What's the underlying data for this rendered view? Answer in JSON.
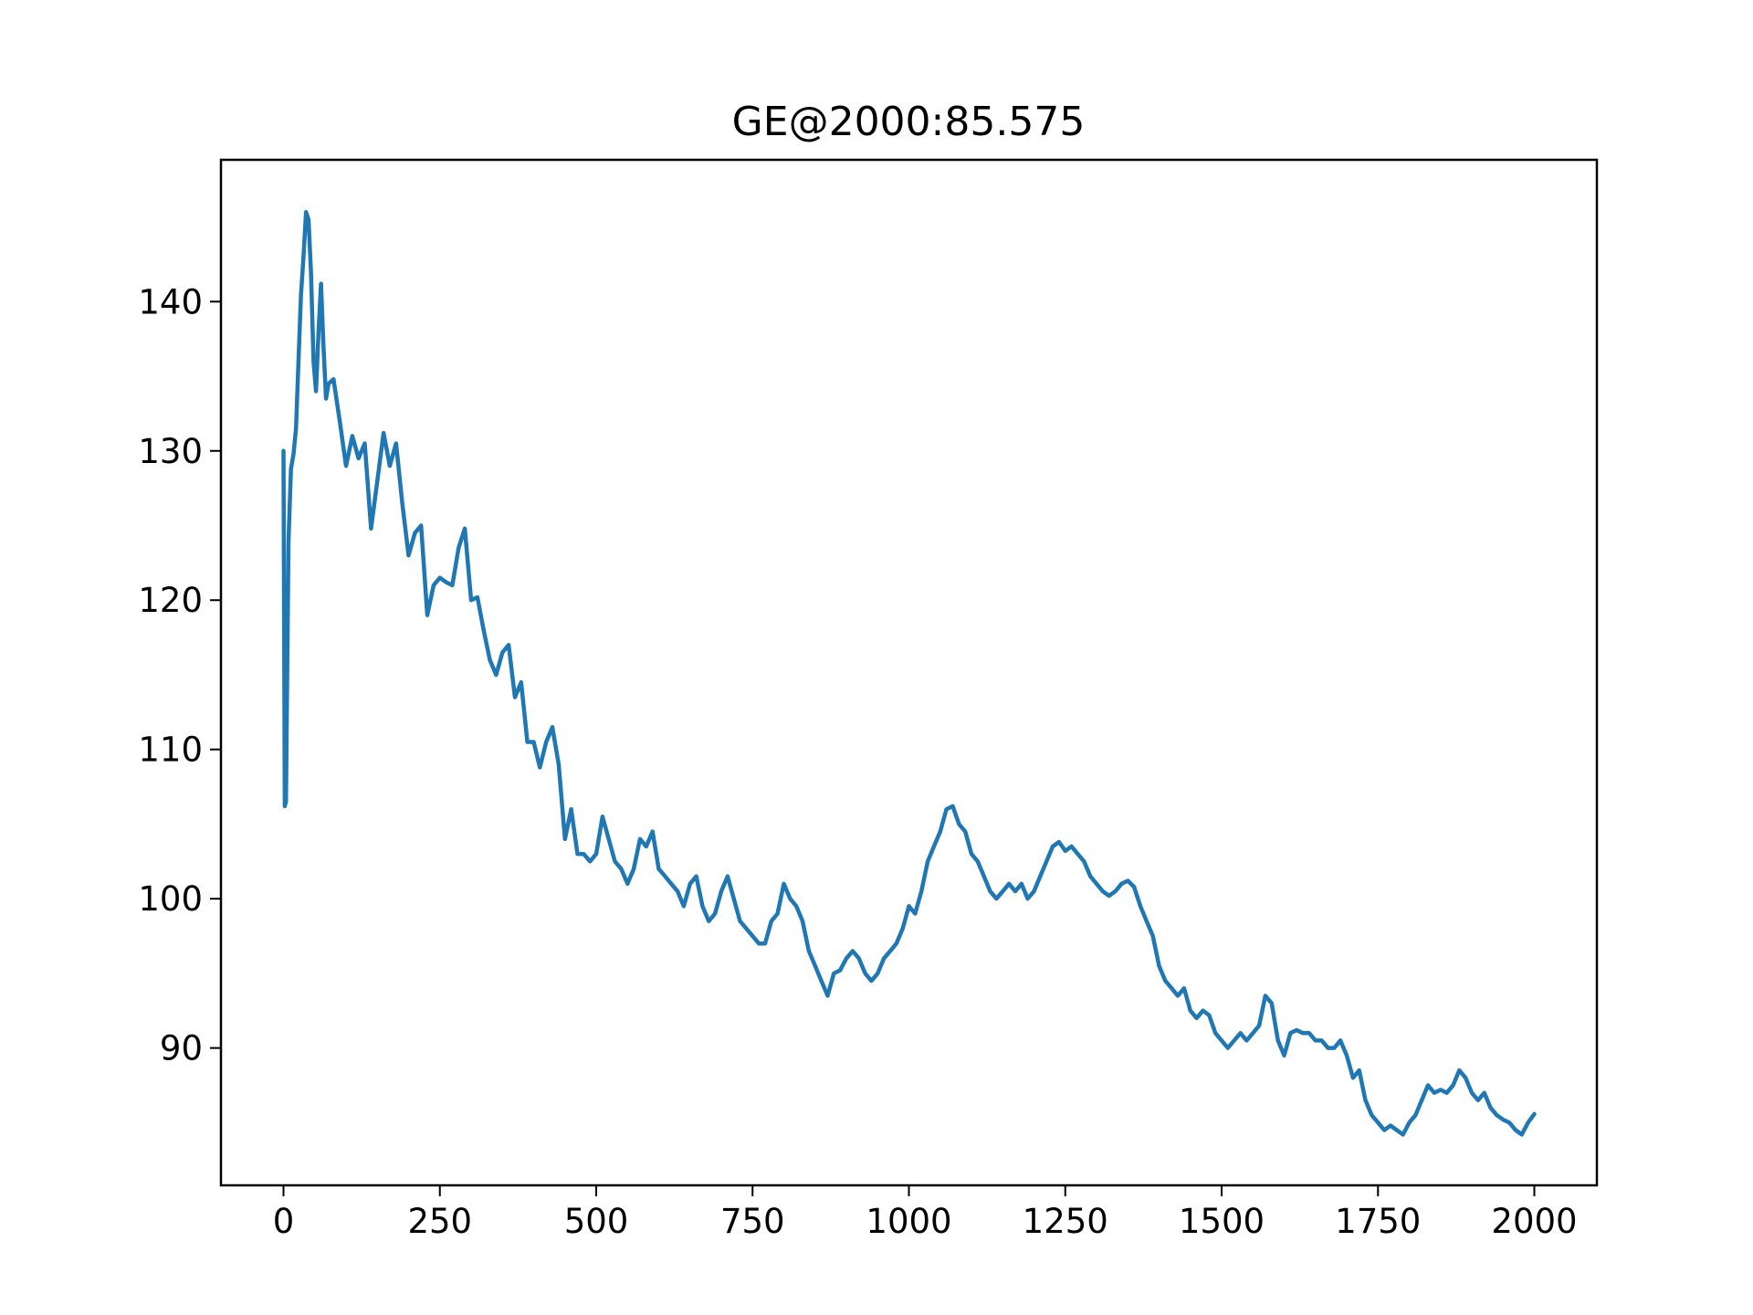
{
  "chart_data": {
    "type": "line",
    "title": "GE@2000:85.575",
    "xlabel": "",
    "ylabel": "",
    "xlim": [
      -100,
      2100
    ],
    "ylim": [
      80.8,
      149.5
    ],
    "x_ticks": [
      0,
      250,
      500,
      750,
      1000,
      1250,
      1500,
      1750,
      2000
    ],
    "y_ticks": [
      90,
      100,
      110,
      120,
      130,
      140
    ],
    "grid": false,
    "legend": "none",
    "line_color": "#1f77b4",
    "series": [
      {
        "points": [
          [
            0,
            130.0
          ],
          [
            2,
            106.2
          ],
          [
            4,
            106.5
          ],
          [
            8,
            124.0
          ],
          [
            12,
            128.8
          ],
          [
            16,
            129.8
          ],
          [
            20,
            131.5
          ],
          [
            24,
            136.0
          ],
          [
            28,
            140.5
          ],
          [
            32,
            143.0
          ],
          [
            36,
            146.0
          ],
          [
            40,
            145.5
          ],
          [
            44,
            142.0
          ],
          [
            48,
            136.0
          ],
          [
            52,
            134.0
          ],
          [
            56,
            138.0
          ],
          [
            60,
            141.2
          ],
          [
            64,
            137.0
          ],
          [
            68,
            133.5
          ],
          [
            72,
            134.5
          ],
          [
            80,
            134.8
          ],
          [
            90,
            132.0
          ],
          [
            100,
            129.0
          ],
          [
            110,
            131.0
          ],
          [
            120,
            129.5
          ],
          [
            130,
            130.5
          ],
          [
            140,
            124.8
          ],
          [
            150,
            128.0
          ],
          [
            160,
            131.2
          ],
          [
            170,
            129.0
          ],
          [
            180,
            130.5
          ],
          [
            190,
            126.5
          ],
          [
            200,
            123.0
          ],
          [
            210,
            124.5
          ],
          [
            220,
            125.0
          ],
          [
            230,
            119.0
          ],
          [
            240,
            121.0
          ],
          [
            250,
            121.5
          ],
          [
            260,
            121.2
          ],
          [
            270,
            121.0
          ],
          [
            280,
            123.5
          ],
          [
            290,
            124.8
          ],
          [
            300,
            120.0
          ],
          [
            310,
            120.2
          ],
          [
            320,
            118.0
          ],
          [
            330,
            116.0
          ],
          [
            340,
            115.0
          ],
          [
            350,
            116.5
          ],
          [
            360,
            117.0
          ],
          [
            370,
            113.5
          ],
          [
            380,
            114.5
          ],
          [
            390,
            110.5
          ],
          [
            400,
            110.5
          ],
          [
            410,
            108.8
          ],
          [
            420,
            110.5
          ],
          [
            430,
            111.5
          ],
          [
            440,
            109.0
          ],
          [
            450,
            104.0
          ],
          [
            460,
            106.0
          ],
          [
            470,
            103.0
          ],
          [
            480,
            103.0
          ],
          [
            490,
            102.5
          ],
          [
            500,
            103.0
          ],
          [
            510,
            105.5
          ],
          [
            520,
            104.0
          ],
          [
            530,
            102.5
          ],
          [
            540,
            102.0
          ],
          [
            550,
            101.0
          ],
          [
            560,
            102.0
          ],
          [
            570,
            104.0
          ],
          [
            580,
            103.5
          ],
          [
            590,
            104.5
          ],
          [
            600,
            102.0
          ],
          [
            610,
            101.5
          ],
          [
            620,
            101.0
          ],
          [
            630,
            100.5
          ],
          [
            640,
            99.5
          ],
          [
            650,
            101.0
          ],
          [
            660,
            101.5
          ],
          [
            670,
            99.5
          ],
          [
            680,
            98.5
          ],
          [
            690,
            99.0
          ],
          [
            700,
            100.5
          ],
          [
            710,
            101.5
          ],
          [
            720,
            100.0
          ],
          [
            730,
            98.5
          ],
          [
            740,
            98.0
          ],
          [
            750,
            97.5
          ],
          [
            760,
            97.0
          ],
          [
            770,
            97.0
          ],
          [
            780,
            98.5
          ],
          [
            790,
            99.0
          ],
          [
            800,
            101.0
          ],
          [
            810,
            100.0
          ],
          [
            820,
            99.5
          ],
          [
            830,
            98.5
          ],
          [
            840,
            96.5
          ],
          [
            850,
            95.5
          ],
          [
            860,
            94.5
          ],
          [
            870,
            93.5
          ],
          [
            880,
            95.0
          ],
          [
            890,
            95.2
          ],
          [
            900,
            96.0
          ],
          [
            910,
            96.5
          ],
          [
            920,
            96.0
          ],
          [
            930,
            95.0
          ],
          [
            940,
            94.5
          ],
          [
            950,
            95.0
          ],
          [
            960,
            96.0
          ],
          [
            970,
            96.5
          ],
          [
            980,
            97.0
          ],
          [
            990,
            98.0
          ],
          [
            1000,
            99.5
          ],
          [
            1010,
            99.0
          ],
          [
            1020,
            100.5
          ],
          [
            1030,
            102.5
          ],
          [
            1040,
            103.5
          ],
          [
            1050,
            104.5
          ],
          [
            1060,
            106.0
          ],
          [
            1070,
            106.2
          ],
          [
            1080,
            105.0
          ],
          [
            1090,
            104.5
          ],
          [
            1100,
            103.0
          ],
          [
            1110,
            102.5
          ],
          [
            1120,
            101.5
          ],
          [
            1130,
            100.5
          ],
          [
            1140,
            100.0
          ],
          [
            1150,
            100.5
          ],
          [
            1160,
            101.0
          ],
          [
            1170,
            100.5
          ],
          [
            1180,
            101.0
          ],
          [
            1190,
            100.0
          ],
          [
            1200,
            100.5
          ],
          [
            1210,
            101.5
          ],
          [
            1220,
            102.5
          ],
          [
            1230,
            103.5
          ],
          [
            1240,
            103.8
          ],
          [
            1250,
            103.2
          ],
          [
            1260,
            103.5
          ],
          [
            1270,
            103.0
          ],
          [
            1280,
            102.5
          ],
          [
            1290,
            101.5
          ],
          [
            1300,
            101.0
          ],
          [
            1310,
            100.5
          ],
          [
            1320,
            100.2
          ],
          [
            1330,
            100.5
          ],
          [
            1340,
            101.0
          ],
          [
            1350,
            101.2
          ],
          [
            1360,
            100.8
          ],
          [
            1370,
            99.5
          ],
          [
            1380,
            98.5
          ],
          [
            1390,
            97.5
          ],
          [
            1400,
            95.5
          ],
          [
            1410,
            94.5
          ],
          [
            1420,
            94.0
          ],
          [
            1430,
            93.5
          ],
          [
            1440,
            94.0
          ],
          [
            1450,
            92.5
          ],
          [
            1460,
            92.0
          ],
          [
            1470,
            92.5
          ],
          [
            1480,
            92.2
          ],
          [
            1490,
            91.0
          ],
          [
            1500,
            90.5
          ],
          [
            1510,
            90.0
          ],
          [
            1520,
            90.5
          ],
          [
            1530,
            91.0
          ],
          [
            1540,
            90.5
          ],
          [
            1550,
            91.0
          ],
          [
            1560,
            91.5
          ],
          [
            1570,
            93.5
          ],
          [
            1580,
            93.0
          ],
          [
            1590,
            90.5
          ],
          [
            1600,
            89.5
          ],
          [
            1610,
            91.0
          ],
          [
            1620,
            91.2
          ],
          [
            1630,
            91.0
          ],
          [
            1640,
            91.0
          ],
          [
            1650,
            90.5
          ],
          [
            1660,
            90.5
          ],
          [
            1670,
            90.0
          ],
          [
            1680,
            90.0
          ],
          [
            1690,
            90.5
          ],
          [
            1700,
            89.5
          ],
          [
            1710,
            88.0
          ],
          [
            1720,
            88.5
          ],
          [
            1730,
            86.5
          ],
          [
            1740,
            85.5
          ],
          [
            1750,
            85.0
          ],
          [
            1760,
            84.5
          ],
          [
            1770,
            84.8
          ],
          [
            1780,
            84.5
          ],
          [
            1790,
            84.2
          ],
          [
            1800,
            85.0
          ],
          [
            1810,
            85.5
          ],
          [
            1820,
            86.5
          ],
          [
            1830,
            87.5
          ],
          [
            1840,
            87.0
          ],
          [
            1850,
            87.2
          ],
          [
            1860,
            87.0
          ],
          [
            1870,
            87.5
          ],
          [
            1880,
            88.5
          ],
          [
            1890,
            88.0
          ],
          [
            1900,
            87.0
          ],
          [
            1910,
            86.5
          ],
          [
            1920,
            87.0
          ],
          [
            1930,
            86.0
          ],
          [
            1940,
            85.5
          ],
          [
            1950,
            85.2
          ],
          [
            1960,
            85.0
          ],
          [
            1970,
            84.5
          ],
          [
            1980,
            84.2
          ],
          [
            1990,
            85.0
          ],
          [
            2000,
            85.575
          ]
        ]
      }
    ]
  }
}
